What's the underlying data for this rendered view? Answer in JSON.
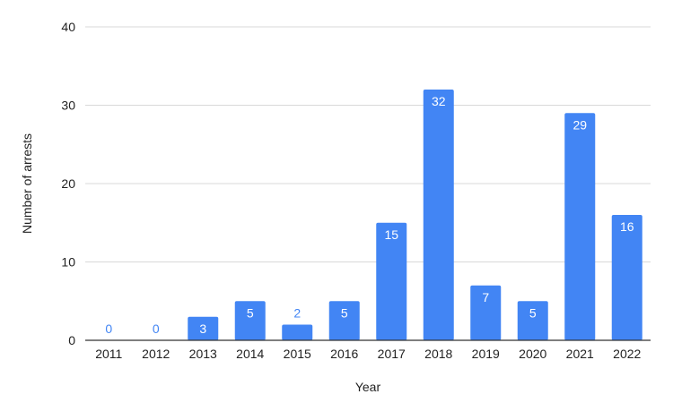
{
  "chart_data": {
    "type": "bar",
    "title": "",
    "xlabel": "Year",
    "ylabel": "Number of arrests",
    "categories": [
      "2011",
      "2012",
      "2013",
      "2014",
      "2015",
      "2016",
      "2017",
      "2018",
      "2019",
      "2020",
      "2021",
      "2022"
    ],
    "values": [
      0,
      0,
      3,
      5,
      2,
      5,
      15,
      32,
      7,
      5,
      29,
      16
    ],
    "ylim": [
      0,
      40
    ],
    "yticks": [
      0,
      10,
      20,
      30,
      40
    ],
    "grid": true,
    "legend": "none",
    "colors": {
      "bar": "#4285f4",
      "outside_label": "#4285f4",
      "inside_label": "#ffffff",
      "grid": "#d9d9d9",
      "axis": "#333333"
    }
  }
}
